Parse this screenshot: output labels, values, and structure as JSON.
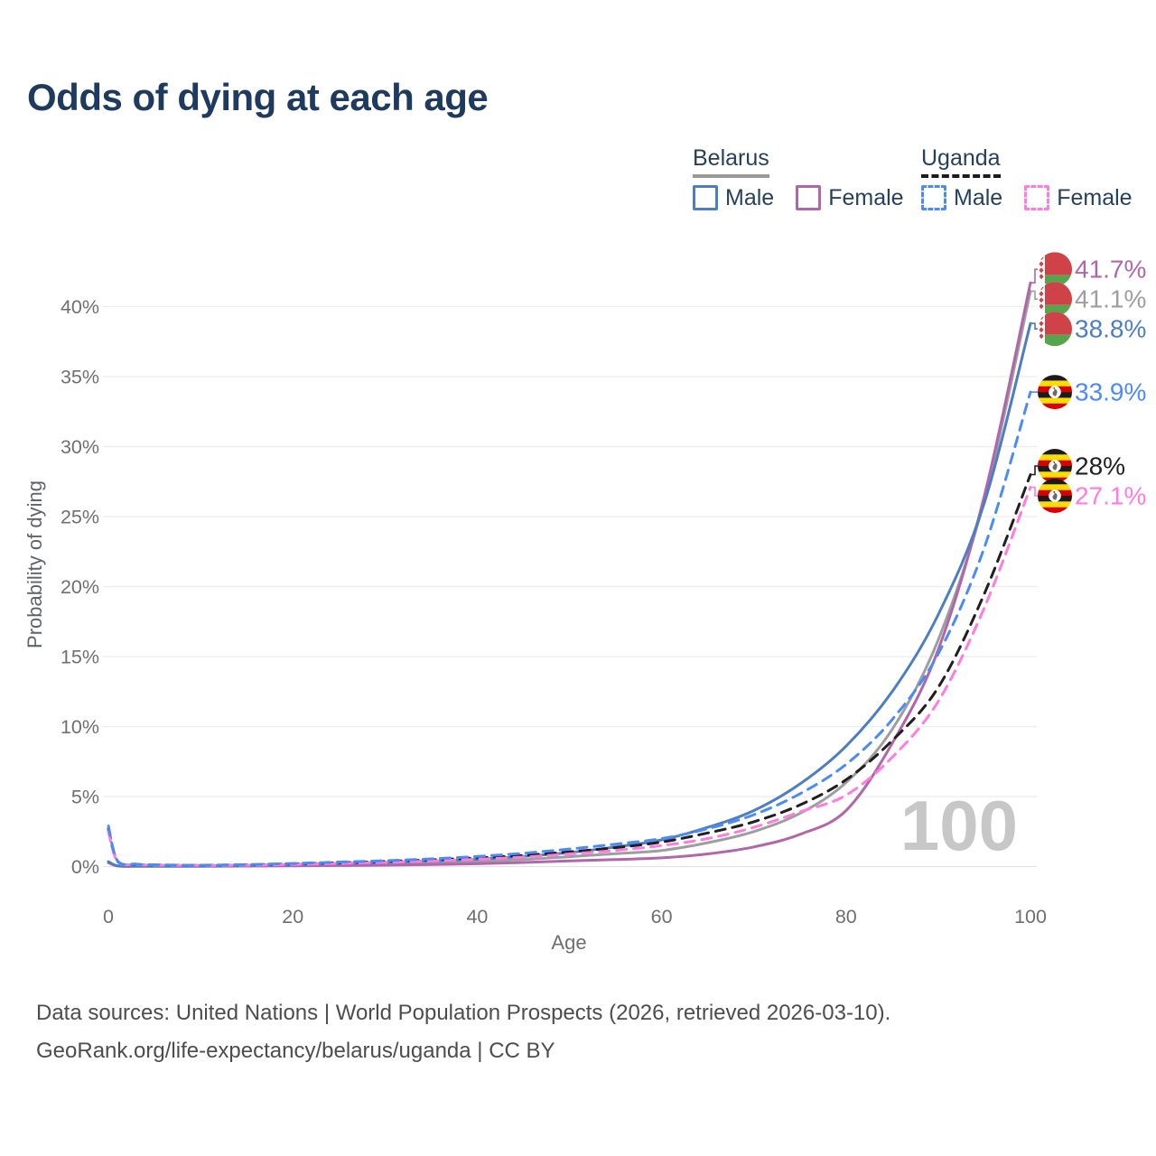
{
  "title": "Odds of dying at each age",
  "watermark": "100",
  "legend": {
    "groups": [
      {
        "country": "Belarus",
        "line_style": "solid",
        "underline_color": "#9a9a9a",
        "items": [
          {
            "label": "Male",
            "series": "belarus-male"
          },
          {
            "label": "Female",
            "series": "belarus-female"
          }
        ]
      },
      {
        "country": "Uganda",
        "line_style": "dashed",
        "underline_color": "#1b1b1b",
        "items": [
          {
            "label": "Male",
            "series": "uganda-male"
          },
          {
            "label": "Female",
            "series": "uganda-female"
          }
        ]
      }
    ]
  },
  "footer": {
    "line1": "Data sources: United Nations | World Population Prospects (2026, retrieved 2026-03-10).",
    "line2": "GeoRank.org/life-expectancy/belarus/uganda | CC BY"
  },
  "chart_data": {
    "type": "line",
    "title": "Odds of dying at each age",
    "xlabel": "Age",
    "ylabel": "Probability of dying",
    "xlim": [
      0,
      100
    ],
    "ylim": [
      0,
      43
    ],
    "grid": "horizontal",
    "legend_position": "top-right",
    "xticks": [
      0,
      20,
      40,
      60,
      80,
      100
    ],
    "yticks": [
      0,
      5,
      10,
      15,
      20,
      25,
      30,
      35,
      40
    ],
    "ytick_labels": [
      "0%",
      "5%",
      "10%",
      "15%",
      "20%",
      "25%",
      "30%",
      "35%",
      "40%"
    ],
    "colors": {
      "belarus_male": "#4d7ec2",
      "belarus_female": "#b066ab",
      "belarus_combined": "#9e9e9e",
      "uganda_male": "#4b8bf5",
      "uganda_female": "#ff7bdf",
      "uganda_combined": "#1f1f1f",
      "gridline": "#ececec",
      "watermark": "#c7c7c7",
      "axis_text": "#6f6f6f"
    },
    "series": [
      {
        "id": "belarus-male",
        "country": "belarus",
        "sex": "male",
        "color": "#4d7ec2",
        "dash": false,
        "end_label": "38.8%",
        "end_value": 38.8,
        "points": [
          [
            0,
            0.35
          ],
          [
            1,
            0.05
          ],
          [
            3,
            0.03
          ],
          [
            5,
            0.03
          ],
          [
            10,
            0.04
          ],
          [
            15,
            0.08
          ],
          [
            20,
            0.15
          ],
          [
            25,
            0.22
          ],
          [
            30,
            0.3
          ],
          [
            35,
            0.4
          ],
          [
            40,
            0.52
          ],
          [
            45,
            0.72
          ],
          [
            50,
            1.0
          ],
          [
            55,
            1.4
          ],
          [
            60,
            1.9
          ],
          [
            65,
            2.8
          ],
          [
            70,
            4.0
          ],
          [
            75,
            5.9
          ],
          [
            80,
            8.6
          ],
          [
            85,
            12.5
          ],
          [
            90,
            18.0
          ],
          [
            95,
            26.0
          ],
          [
            100,
            38.8
          ]
        ]
      },
      {
        "id": "belarus-female",
        "country": "belarus",
        "sex": "female",
        "color": "#b066ab",
        "dash": false,
        "end_label": "41.7%",
        "end_value": 41.7,
        "points": [
          [
            0,
            0.28
          ],
          [
            1,
            0.04
          ],
          [
            3,
            0.02
          ],
          [
            5,
            0.02
          ],
          [
            10,
            0.02
          ],
          [
            15,
            0.03
          ],
          [
            20,
            0.05
          ],
          [
            25,
            0.07
          ],
          [
            30,
            0.1
          ],
          [
            35,
            0.14
          ],
          [
            40,
            0.2
          ],
          [
            45,
            0.29
          ],
          [
            50,
            0.4
          ],
          [
            55,
            0.5
          ],
          [
            60,
            0.62
          ],
          [
            65,
            0.9
          ],
          [
            70,
            1.4
          ],
          [
            75,
            2.3
          ],
          [
            80,
            4.0
          ],
          [
            85,
            8.8
          ],
          [
            90,
            15.5
          ],
          [
            95,
            26.5
          ],
          [
            100,
            41.7
          ]
        ]
      },
      {
        "id": "belarus-combined",
        "country": "belarus",
        "sex": "both",
        "color": "#9e9e9e",
        "dash": false,
        "end_label": "41.1%",
        "end_value": 41.1,
        "points": [
          [
            0,
            0.32
          ],
          [
            1,
            0.045
          ],
          [
            3,
            0.025
          ],
          [
            5,
            0.025
          ],
          [
            10,
            0.03
          ],
          [
            15,
            0.055
          ],
          [
            20,
            0.1
          ],
          [
            25,
            0.15
          ],
          [
            30,
            0.2
          ],
          [
            35,
            0.27
          ],
          [
            40,
            0.36
          ],
          [
            45,
            0.5
          ],
          [
            50,
            0.7
          ],
          [
            55,
            0.92
          ],
          [
            60,
            1.15
          ],
          [
            65,
            1.7
          ],
          [
            70,
            2.5
          ],
          [
            75,
            3.8
          ],
          [
            80,
            6.0
          ],
          [
            85,
            9.8
          ],
          [
            90,
            16.2
          ],
          [
            95,
            26.2
          ],
          [
            100,
            41.1
          ]
        ]
      },
      {
        "id": "uganda-male",
        "country": "uganda",
        "sex": "male",
        "color": "#4b8bf5",
        "dash": true,
        "end_label": "33.9%",
        "end_value": 33.9,
        "points": [
          [
            0,
            2.9
          ],
          [
            1,
            0.4
          ],
          [
            3,
            0.18
          ],
          [
            5,
            0.12
          ],
          [
            10,
            0.1
          ],
          [
            15,
            0.14
          ],
          [
            20,
            0.22
          ],
          [
            25,
            0.32
          ],
          [
            30,
            0.42
          ],
          [
            35,
            0.55
          ],
          [
            40,
            0.72
          ],
          [
            45,
            0.95
          ],
          [
            50,
            1.25
          ],
          [
            55,
            1.6
          ],
          [
            60,
            2.0
          ],
          [
            65,
            2.7
          ],
          [
            70,
            3.7
          ],
          [
            75,
            5.2
          ],
          [
            80,
            7.3
          ],
          [
            85,
            10.5
          ],
          [
            90,
            15.2
          ],
          [
            95,
            22.8
          ],
          [
            100,
            33.9
          ]
        ]
      },
      {
        "id": "uganda-female",
        "country": "uganda",
        "sex": "female",
        "color": "#ff7bdf",
        "dash": true,
        "end_label": "27.1%",
        "end_value": 27.1,
        "points": [
          [
            0,
            2.5
          ],
          [
            1,
            0.35
          ],
          [
            3,
            0.15
          ],
          [
            5,
            0.1
          ],
          [
            10,
            0.08
          ],
          [
            15,
            0.1
          ],
          [
            20,
            0.15
          ],
          [
            25,
            0.22
          ],
          [
            30,
            0.3
          ],
          [
            35,
            0.4
          ],
          [
            40,
            0.52
          ],
          [
            45,
            0.68
          ],
          [
            50,
            0.9
          ],
          [
            55,
            1.15
          ],
          [
            60,
            1.5
          ],
          [
            65,
            2.0
          ],
          [
            70,
            2.8
          ],
          [
            75,
            3.9
          ],
          [
            80,
            5.1
          ],
          [
            85,
            7.8
          ],
          [
            90,
            11.8
          ],
          [
            95,
            18.5
          ],
          [
            100,
            27.1
          ]
        ]
      },
      {
        "id": "uganda-combined",
        "country": "uganda",
        "sex": "both",
        "color": "#1f1f1f",
        "dash": true,
        "end_label": "28%",
        "end_value": 28,
        "points": [
          [
            0,
            2.7
          ],
          [
            1,
            0.38
          ],
          [
            3,
            0.16
          ],
          [
            5,
            0.11
          ],
          [
            10,
            0.09
          ],
          [
            15,
            0.12
          ],
          [
            20,
            0.19
          ],
          [
            25,
            0.27
          ],
          [
            30,
            0.36
          ],
          [
            35,
            0.48
          ],
          [
            40,
            0.62
          ],
          [
            45,
            0.8
          ],
          [
            50,
            1.05
          ],
          [
            55,
            1.35
          ],
          [
            60,
            1.75
          ],
          [
            65,
            2.4
          ],
          [
            70,
            3.2
          ],
          [
            75,
            4.4
          ],
          [
            80,
            6.2
          ],
          [
            85,
            9.0
          ],
          [
            90,
            12.8
          ],
          [
            95,
            19.5
          ],
          [
            100,
            28.0
          ]
        ]
      }
    ]
  }
}
